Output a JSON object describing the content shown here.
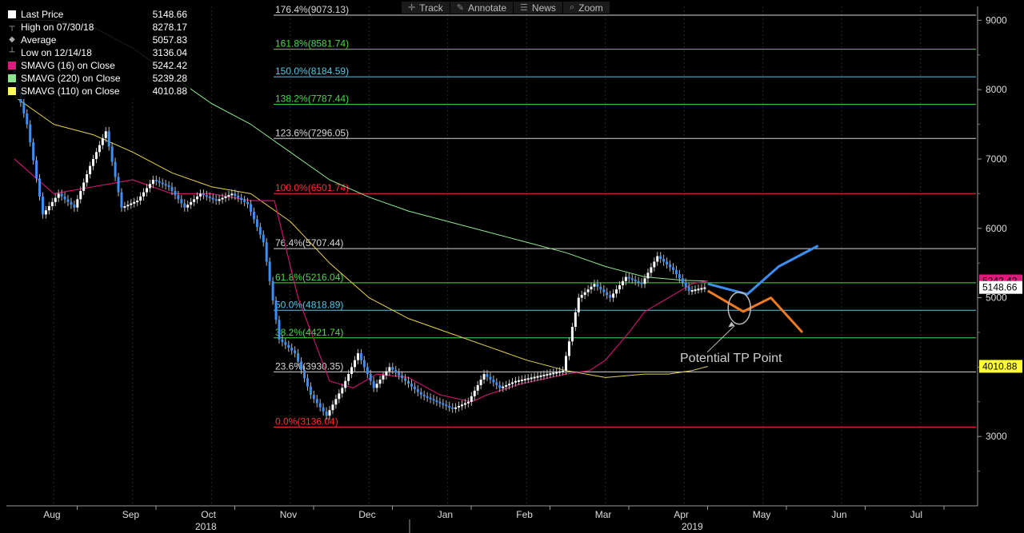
{
  "toolbar": [
    {
      "label": "Track",
      "icon": "crosshair-icon",
      "glyph": "✛"
    },
    {
      "label": "Annotate",
      "icon": "pencil-icon",
      "glyph": "✎"
    },
    {
      "label": "News",
      "icon": "news-icon",
      "glyph": "☰"
    },
    {
      "label": "Zoom",
      "icon": "magnifier-icon",
      "glyph": "⌕"
    }
  ],
  "legend": [
    {
      "label": "Last Price",
      "value": "5148.66",
      "color": "#ffffff",
      "kind": "swatch"
    },
    {
      "label": "High on 07/30/18",
      "value": "8278.17",
      "color": "#aaaaaa",
      "kind": "high"
    },
    {
      "label": "Average",
      "value": "5057.83",
      "color": "#aaaaaa",
      "kind": "avg"
    },
    {
      "label": "Low on 12/14/18",
      "value": "3136.04",
      "color": "#aaaaaa",
      "kind": "low"
    },
    {
      "label": "SMAVG (16)  on Close",
      "value": "5242.42",
      "color": "#e0197d",
      "kind": "swatch"
    },
    {
      "label": "SMAVG (220)  on Close",
      "value": "5239.28",
      "color": "#8ee58e",
      "kind": "swatch"
    },
    {
      "label": "SMAVG (110)  on Close",
      "value": "4010.88",
      "color": "#ffff55",
      "kind": "swatch"
    }
  ],
  "chart_data": {
    "type": "line",
    "y_axis": {
      "min": 2000,
      "max": 9200,
      "ticks": [
        3000,
        4000,
        5000,
        6000,
        7000,
        8000,
        9000
      ],
      "labels": [
        "3000",
        "4000",
        "5000",
        "6000",
        "7000",
        "8000",
        "9000"
      ]
    },
    "x_axis": {
      "months": [
        "Aug",
        "Sep",
        "Oct",
        "Nov",
        "Dec",
        "Jan",
        "Feb",
        "Mar",
        "Apr",
        "May",
        "Jun",
        "Jul"
      ],
      "years": [
        "2018",
        "2019"
      ]
    },
    "fib_levels": [
      {
        "label": "176.4%(9073.13)",
        "value": 9073.13,
        "color": "#d8d8d8"
      },
      {
        "label": "161.8%(8581.74)",
        "value": 8581.74,
        "color": "#44dd44"
      },
      {
        "label": "150.0%(8184.59)",
        "value": 8184.59,
        "color": "#55c8e8"
      },
      {
        "label": "138.2%(7787.44)",
        "value": 7787.44,
        "color": "#44dd44"
      },
      {
        "label": "123.6%(7296.05)",
        "value": 7296.05,
        "color": "#d8d8d8"
      },
      {
        "label": "100.0%(6501.74)",
        "value": 6501.74,
        "color": "#ff3030"
      },
      {
        "label": "76.4%(5707.44)",
        "value": 5707.44,
        "color": "#d8d8d8"
      },
      {
        "label": "61.8%(5216.04)",
        "value": 5216.04,
        "color": "#44dd44"
      },
      {
        "label": "50.0%(4818.89)",
        "value": 4818.89,
        "color": "#55c8e8"
      },
      {
        "label": "38.2%(4421.74)",
        "value": 4421.74,
        "color": "#44dd44"
      },
      {
        "label": "23.6%(3930.35)",
        "value": 3930.35,
        "color": "#d8d8d8"
      },
      {
        "label": "0.0%(3136.04)",
        "value": 3136.04,
        "color": "#ff3030"
      }
    ],
    "price": {
      "name": "Last Price",
      "t": [
        0,
        0.2,
        0.4,
        0.6,
        0.8,
        1,
        1.2,
        1.4,
        1.6,
        1.8,
        2,
        2.2,
        2.4,
        2.6,
        2.8,
        3,
        3.2,
        3.4,
        3.6,
        3.8,
        4,
        4.2,
        4.4,
        4.6,
        4.8,
        5,
        5.2,
        5.4,
        5.6,
        5.8,
        6,
        6.2,
        6.4,
        6.6,
        6.8,
        7,
        7.2,
        7.4,
        7.6,
        7.8,
        8,
        8.2,
        8.4,
        8.6,
        8.8
      ],
      "v": [
        8280,
        7500,
        6200,
        6500,
        6300,
        6900,
        7400,
        6300,
        6400,
        6700,
        6600,
        6300,
        6500,
        6400,
        6500,
        6350,
        5800,
        4400,
        4200,
        3600,
        3300,
        3700,
        4200,
        3700,
        4000,
        3800,
        3600,
        3500,
        3400,
        3500,
        3900,
        3700,
        3800,
        3850,
        3900,
        3950,
        5000,
        5200,
        5000,
        5300,
        5200,
        5600,
        5400,
        5100,
        5150
      ]
    },
    "smavg_16": {
      "name": "SMAVG (16)  on Close",
      "t": [
        0,
        0.5,
        1,
        1.5,
        2,
        2.5,
        3,
        3.3,
        3.6,
        4,
        4.3,
        4.6,
        5,
        5.4,
        5.8,
        6,
        6.4,
        6.8,
        7,
        7.3,
        7.5,
        7.8,
        8,
        8.3,
        8.6,
        8.8
      ],
      "v": [
        7000,
        6500,
        6600,
        6700,
        6500,
        6500,
        6400,
        6400,
        5000,
        3800,
        3700,
        3900,
        3850,
        3600,
        3500,
        3600,
        3750,
        3850,
        3900,
        3950,
        4100,
        4500,
        4800,
        5000,
        5200,
        5242
      ]
    },
    "smavg_220": {
      "name": "SMAVG (220)  on Close",
      "t": [
        0,
        0.5,
        1,
        1.5,
        2,
        2.5,
        3,
        3.5,
        4,
        4.5,
        5,
        5.5,
        6,
        6.5,
        7,
        7.5,
        8,
        8.5,
        8.8
      ],
      "v": [
        9000,
        9000,
        8900,
        8600,
        8200,
        7800,
        7500,
        7100,
        6700,
        6450,
        6250,
        6100,
        5950,
        5800,
        5650,
        5450,
        5300,
        5250,
        5239
      ]
    },
    "smavg_110": {
      "name": "SMAVG (110)  on Close",
      "t": [
        0,
        0.5,
        1,
        1.5,
        2,
        2.5,
        3,
        3.5,
        4,
        4.5,
        5,
        5.5,
        6,
        6.5,
        7,
        7.5,
        8,
        8.3,
        8.6,
        8.8
      ],
      "v": [
        7900,
        7500,
        7350,
        7100,
        6800,
        6600,
        6500,
        6100,
        5500,
        5000,
        4700,
        4500,
        4300,
        4100,
        3950,
        3850,
        3900,
        3900,
        3950,
        4010
      ]
    },
    "projection_bull": {
      "t": [
        8.8,
        9.3,
        9.7,
        10.2
      ],
      "v": [
        5200,
        5050,
        5450,
        5750
      ],
      "color": "#3d8ef5"
    },
    "projection_bear": {
      "t": [
        8.8,
        9.25,
        9.6,
        10
      ],
      "v": [
        5100,
        4800,
        5000,
        4500
      ],
      "color": "#f07a22"
    },
    "annotation": {
      "text": "Potential TP Point",
      "t": 9.2,
      "v": 4850
    },
    "last_price_label": "5148.66",
    "sma16_label": "5242.42",
    "sma110_label": "4010.88"
  }
}
